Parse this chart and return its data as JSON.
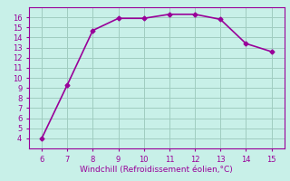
{
  "x": [
    6,
    7,
    8,
    9,
    10,
    11,
    12,
    13,
    14,
    15
  ],
  "y": [
    4,
    9.3,
    14.7,
    15.9,
    15.9,
    16.3,
    16.3,
    15.8,
    13.4,
    12.6
  ],
  "line_color": "#990099",
  "marker": "D",
  "marker_size": 2.5,
  "xlabel": "Windchill (Refroidissement éolien,°C)",
  "xlabel_color": "#990099",
  "xlim": [
    5.5,
    15.5
  ],
  "ylim": [
    3,
    17
  ],
  "xticks": [
    6,
    7,
    8,
    9,
    10,
    11,
    12,
    13,
    14,
    15
  ],
  "yticks": [
    4,
    5,
    6,
    7,
    8,
    9,
    10,
    11,
    12,
    13,
    14,
    15,
    16
  ],
  "background_color": "#c8f0e8",
  "grid_color": "#a0ccc0",
  "tick_label_color": "#990099",
  "spine_color": "#990099",
  "tick_label_size": 6,
  "xlabel_size": 6.5,
  "linewidth": 1.2
}
